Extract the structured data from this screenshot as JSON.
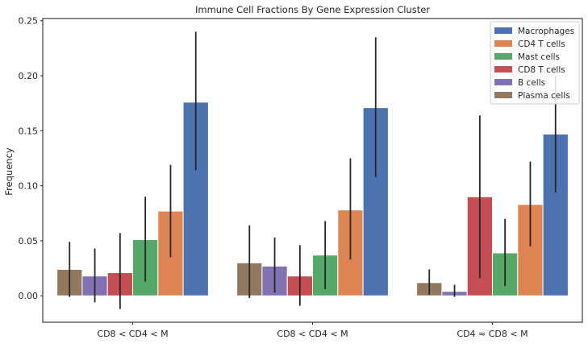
{
  "chart_data": {
    "type": "bar",
    "title": "Immune Cell Fractions By Gene Expression Cluster",
    "xlabel": "",
    "ylabel": "Frequency",
    "ylim": [
      -0.024,
      0.252
    ],
    "yticks": [
      "0.00",
      "0.05",
      "0.10",
      "0.15",
      "0.20",
      "0.25"
    ],
    "categories": [
      "CD8 < CD4 < M",
      "CD8 < CD4 < M",
      "CD4 ≈ CD8 < M"
    ],
    "grid": false,
    "legend_position": "top-right",
    "legend_order": [
      "Macrophages",
      "CD4 T cells",
      "Mast cells",
      "CD8 T cells",
      "B cells",
      "Plasma cells"
    ],
    "series": [
      {
        "name": "Plasma cells",
        "color": "#937860",
        "values": [
          0.024,
          0.03,
          0.012
        ],
        "err_low": [
          -0.001,
          -0.002,
          0.001
        ],
        "err_high": [
          0.049,
          0.064,
          0.024
        ]
      },
      {
        "name": "B cells",
        "color": "#8172b3",
        "values": [
          0.018,
          0.027,
          0.004
        ],
        "err_low": [
          -0.006,
          0.003,
          -0.001
        ],
        "err_high": [
          0.043,
          0.053,
          0.01
        ]
      },
      {
        "name": "CD8 T cells",
        "color": "#c44e52",
        "values": [
          0.021,
          0.018,
          0.09
        ],
        "err_low": [
          -0.012,
          -0.009,
          0.016
        ],
        "err_high": [
          0.057,
          0.046,
          0.164
        ]
      },
      {
        "name": "Mast cells",
        "color": "#55a868",
        "values": [
          0.051,
          0.037,
          0.039
        ],
        "err_low": [
          0.013,
          0.006,
          0.009
        ],
        "err_high": [
          0.09,
          0.068,
          0.07
        ]
      },
      {
        "name": "CD4 T cells",
        "color": "#dd8452",
        "values": [
          0.077,
          0.078,
          0.083
        ],
        "err_low": [
          0.035,
          0.033,
          0.045
        ],
        "err_high": [
          0.119,
          0.125,
          0.122
        ]
      },
      {
        "name": "Macrophages",
        "color": "#4c72b0",
        "values": [
          0.176,
          0.171,
          0.147
        ],
        "err_low": [
          0.114,
          0.108,
          0.094
        ],
        "err_high": [
          0.24,
          0.235,
          0.2
        ]
      }
    ]
  }
}
